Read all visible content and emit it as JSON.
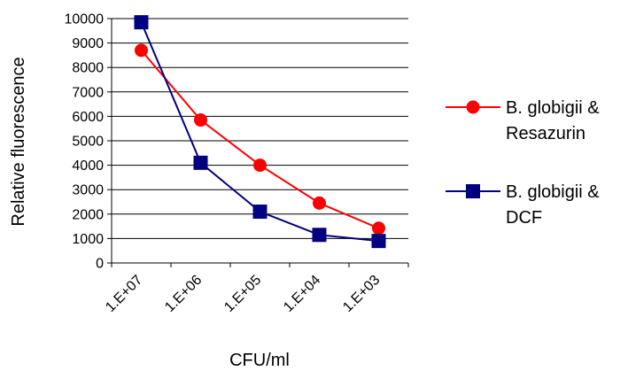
{
  "chart_data": {
    "type": "line",
    "categories": [
      "1.E+07",
      "1.E+06",
      "1.E+05",
      "1.E+04",
      "1.E+03"
    ],
    "x": [
      "1.E+07",
      "1.E+06",
      "1.E+05",
      "1.E+04",
      "1.E+03"
    ],
    "series": [
      {
        "name": "B. globigii & Resazurin",
        "name_lines": [
          "B. globigii &",
          "Resazurin"
        ],
        "values": [
          8700,
          5850,
          4000,
          2450,
          1420
        ],
        "color": "#ff0000",
        "marker": "circle"
      },
      {
        "name": "B. globigii & DCF",
        "name_lines": [
          "B. globigii &",
          "DCF"
        ],
        "values": [
          9850,
          4100,
          2100,
          1150,
          900
        ],
        "color": "#000080",
        "marker": "square"
      }
    ],
    "xlabel": "CFU/ml",
    "ylabel": "Relative fluorescence",
    "ylim": [
      0,
      10000
    ],
    "yticks": [
      "0",
      "1000",
      "2000",
      "3000",
      "4000",
      "5000",
      "6000",
      "7000",
      "8000",
      "9000",
      "10000"
    ],
    "grid": true,
    "legend_position": "right"
  }
}
